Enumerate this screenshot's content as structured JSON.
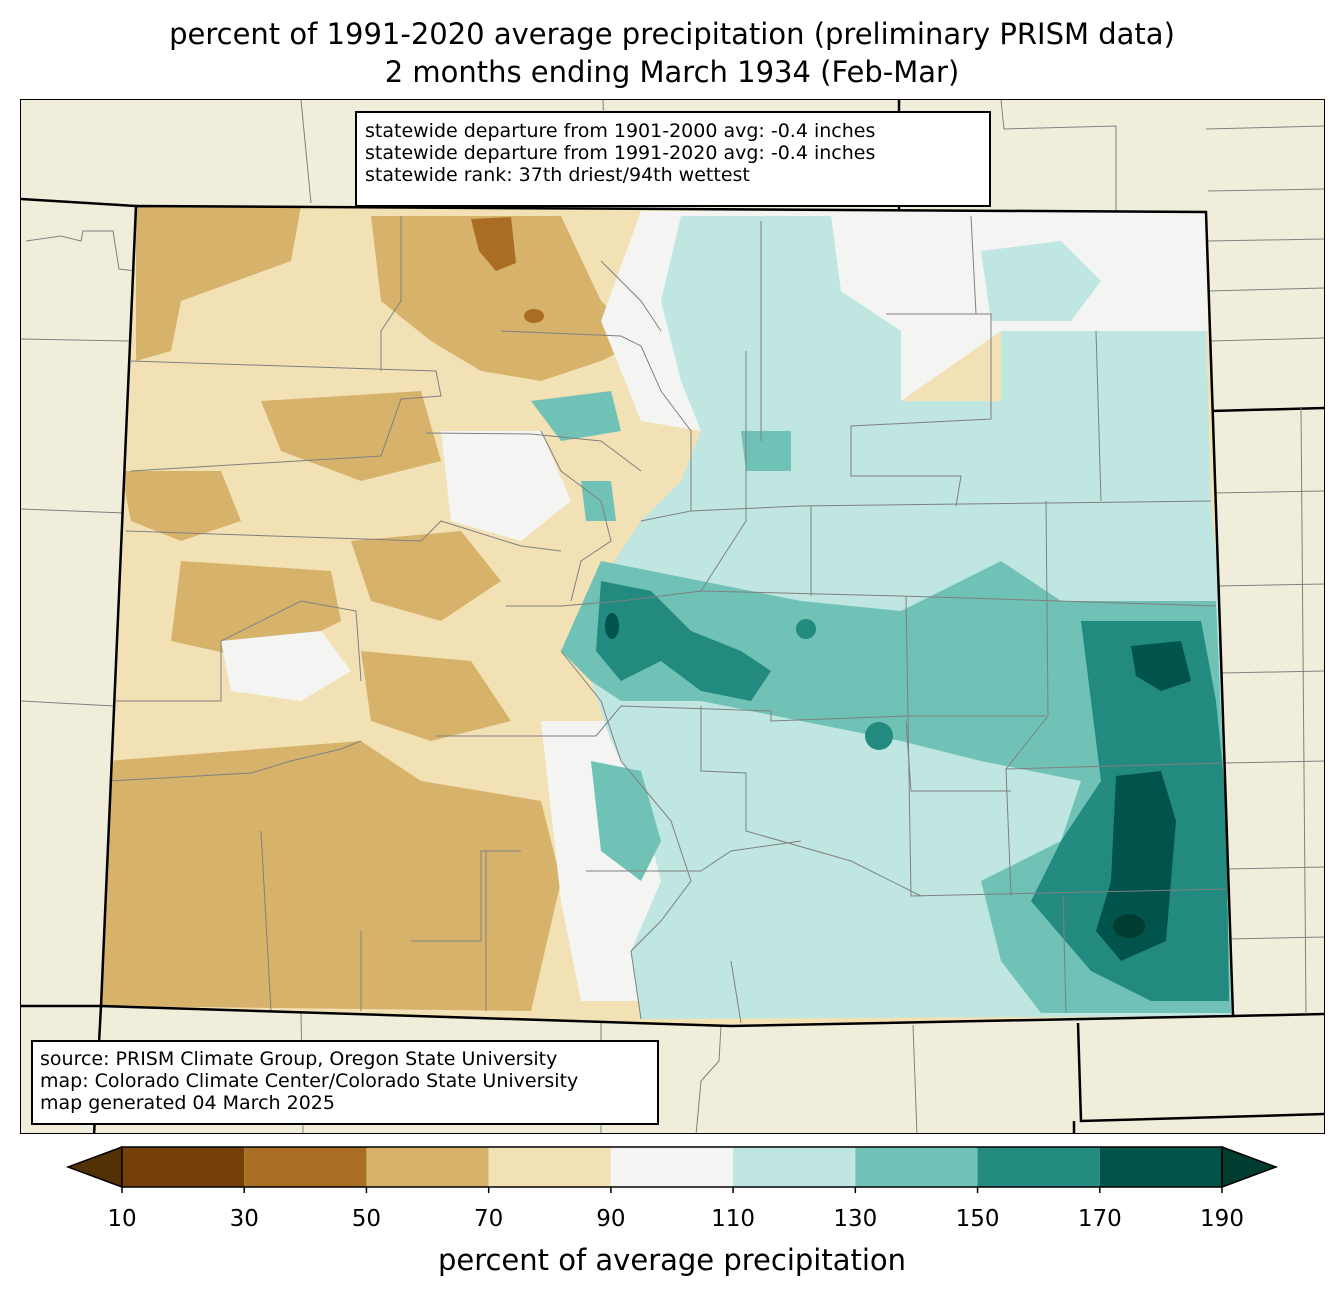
{
  "title": {
    "line1": "percent of 1991-2020 average precipitation (preliminary PRISM data)",
    "line2": "2 months ending March 1934 (Feb-Mar)"
  },
  "stats": {
    "line1": "statewide departure from 1901-2000 avg: -0.4 inches",
    "line2": "statewide departure from 1991-2020 avg: -0.4 inches",
    "line3": "statewide rank: 37th driest/94th wettest"
  },
  "source": {
    "line1": "source: PRISM Climate Group, Oregon State University",
    "line2": "map: Colorado Climate Center/Colorado State University",
    "line3": "map generated 04 March 2025"
  },
  "legend": {
    "label": "percent of average precipitation",
    "ticks": [
      "10",
      "30",
      "50",
      "70",
      "90",
      "110",
      "130",
      "150",
      "170",
      "190"
    ],
    "colors": {
      "below10": "#543005",
      "10-30": "#754008",
      "30-50": "#a96d24",
      "50-70": "#d7b26a",
      "70-90": "#f3e1b6",
      "90-110": "#f4f5f3",
      "110-130": "#bfe6e0",
      "130-150": "#6fc2b5",
      "150-170": "#238a80",
      "170-190": "#01544b",
      "above190": "#003c30"
    }
  },
  "map_colors": {
    "land_outside": "#f0eedb",
    "county_lines": "#808080",
    "state_lines": "#000000"
  }
}
